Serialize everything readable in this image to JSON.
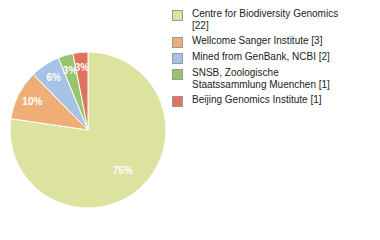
{
  "chart_data": {
    "type": "pie",
    "categories": [
      "Centre for Biodiversity Genomics [22]",
      "Wellcome Sanger Institute [3]",
      "Mined from GenBank, NCBI [2]",
      "SNSB, Zoologische Staatssammlung Muenchen [1]",
      "Beijing Genomics Institute [1]"
    ],
    "values": [
      75,
      10,
      6,
      3,
      3
    ],
    "value_labels": [
      "75%",
      "10%",
      "6%",
      "3%",
      "3%"
    ],
    "colors": [
      "#dce39e",
      "#f0ae77",
      "#a6c2e4",
      "#96c46f",
      "#e0735d"
    ],
    "data_labels": true,
    "legend": "right"
  }
}
